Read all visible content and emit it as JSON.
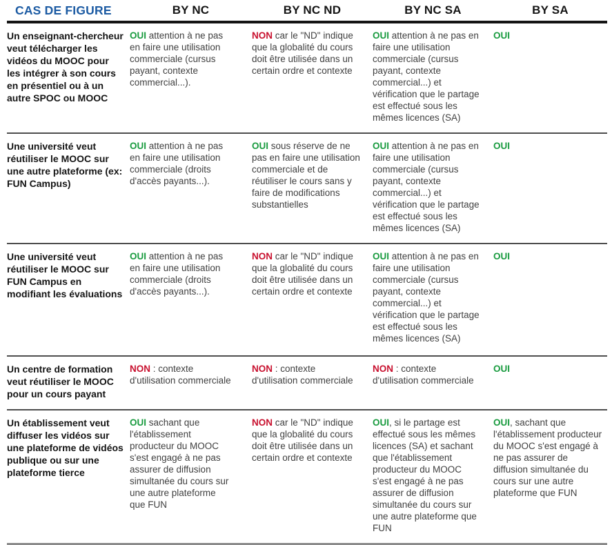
{
  "colors": {
    "header_blue": "#1c5ba3",
    "oui": "#199b3f",
    "non": "#c8102e"
  },
  "table": {
    "headers": {
      "case": "CAS DE FIGURE",
      "by_nc": "BY NC",
      "by_nc_nd": "BY NC ND",
      "by_nc_sa": "BY NC SA",
      "by_sa": "BY SA"
    },
    "rows": [
      {
        "case": "Un enseignant-chercheur veut télécharger les vidéos du MOOC pour les intégrer à son cours en présentiel ou à un autre SPOC ou MOOC",
        "cells": [
          {
            "verdict": "OUI",
            "text": " attention à ne pas en faire une utilisation commerciale (cursus payant, contexte commercial...)."
          },
          {
            "verdict": "NON",
            "text": " car le \"ND\" indique que la globalité du cours doit être utilisée dans un certain ordre et contexte"
          },
          {
            "verdict": "OUI",
            "text": " attention à ne pas en faire une utilisation commerciale (cursus payant, contexte commercial...) et vérification que le partage est effectué sous les mêmes licences (SA)"
          },
          {
            "verdict": "OUI",
            "text": ""
          }
        ]
      },
      {
        "case": "Une université veut réutiliser le MOOC sur une autre plateforme (ex: FUN Campus)",
        "cells": [
          {
            "verdict": "OUI",
            "text": " attention à ne pas en faire une utilisation commerciale (droits d'accès payants...)."
          },
          {
            "verdict": "OUI",
            "text": " sous réserve de ne pas en faire une utilisation commerciale et de réutiliser le cours sans y faire de modifications substantielles"
          },
          {
            "verdict": "OUI",
            "text": " attention à ne pas en faire une utilisation commerciale (cursus payant, contexte commercial...) et vérification que le partage est effectué sous les mêmes licences (SA)"
          },
          {
            "verdict": "OUI",
            "text": ""
          }
        ]
      },
      {
        "case": "Une université veut réutiliser le MOOC sur FUN Campus en modifiant les évaluations",
        "cells": [
          {
            "verdict": "OUI",
            "text": " attention à ne pas en faire une utilisation commerciale (droits d'accès payants...)."
          },
          {
            "verdict": "NON",
            "text": " car le \"ND\" indique que la globalité du cours doit être utilisée dans un certain ordre et contexte"
          },
          {
            "verdict": "OUI",
            "text": " attention à ne pas en faire une utilisation commerciale (cursus payant, contexte commercial...) et vérification que le partage est effectué sous les mêmes licences (SA)"
          },
          {
            "verdict": "OUI",
            "text": ""
          }
        ]
      },
      {
        "case": "Un centre de formation veut réutiliser le MOOC pour un cours payant",
        "cells": [
          {
            "verdict": "NON",
            "text": " : contexte d'utilisation commerciale"
          },
          {
            "verdict": "NON",
            "text": " : contexte d'utilisation commerciale"
          },
          {
            "verdict": "NON",
            "text": " : contexte d'utilisation commerciale"
          },
          {
            "verdict": "OUI",
            "text": ""
          }
        ]
      },
      {
        "case": "Un établissement veut diffuser les vidéos sur une plateforme de vidéos publique ou sur une plateforme tierce",
        "cells": [
          {
            "verdict": "OUI",
            "text": " sachant que l'établissement producteur du MOOC s'est engagé à ne pas assurer de diffusion simultanée du cours sur une autre plateforme que FUN"
          },
          {
            "verdict": "NON",
            "text": " car le \"ND\" indique que la globalité du cours doit être utilisée dans un certain ordre et contexte"
          },
          {
            "verdict": "OUI",
            "text": ", si le partage est effectué sous les mêmes licences (SA) et sachant que l'établissement producteur du MOOC s'est engagé à ne pas assurer de diffusion simultanée du cours sur une autre plateforme que FUN"
          },
          {
            "verdict": "OUI",
            "text": ", sachant que l'établissement producteur du MOOC s'est engagé à ne pas assurer de diffusion simultanée du cours sur une autre plateforme que FUN"
          }
        ]
      }
    ]
  }
}
